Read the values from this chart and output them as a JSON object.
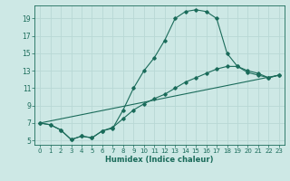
{
  "title": "",
  "xlabel": "Humidex (Indice chaleur)",
  "background_color": "#cde8e5",
  "grid_color": "#b8d8d5",
  "line_color": "#1a6b5a",
  "xlim": [
    -0.5,
    23.5
  ],
  "ylim": [
    4.5,
    20.5
  ],
  "xticks": [
    0,
    1,
    2,
    3,
    4,
    5,
    6,
    7,
    8,
    9,
    10,
    11,
    12,
    13,
    14,
    15,
    16,
    17,
    18,
    19,
    20,
    21,
    22,
    23
  ],
  "yticks": [
    5,
    7,
    9,
    11,
    13,
    15,
    17,
    19
  ],
  "series1_x": [
    0,
    1,
    2,
    3,
    4,
    5,
    6,
    7,
    8,
    9,
    10,
    11,
    12,
    13,
    14,
    15,
    16,
    17,
    18,
    19,
    20,
    21,
    22,
    23
  ],
  "series1_y": [
    7.0,
    6.8,
    6.2,
    5.1,
    5.5,
    5.3,
    6.1,
    6.4,
    8.5,
    11.0,
    13.0,
    14.5,
    16.5,
    19.0,
    19.8,
    20.0,
    19.8,
    19.0,
    15.0,
    13.5,
    13.0,
    12.7,
    12.2,
    12.5
  ],
  "series2_x": [
    0,
    1,
    2,
    3,
    4,
    5,
    6,
    7,
    8,
    9,
    10,
    11,
    12,
    13,
    14,
    15,
    16,
    17,
    18,
    19,
    20,
    21,
    22,
    23
  ],
  "series2_y": [
    7.0,
    6.8,
    6.2,
    5.1,
    5.5,
    5.3,
    6.1,
    6.5,
    7.5,
    8.5,
    9.2,
    9.8,
    10.3,
    11.0,
    11.7,
    12.2,
    12.7,
    13.2,
    13.5,
    13.5,
    12.8,
    12.5,
    12.2,
    12.5
  ],
  "series3_x": [
    0,
    23
  ],
  "series3_y": [
    7.0,
    12.5
  ],
  "xlabel_fontsize": 6,
  "tick_fontsize_x": 5,
  "tick_fontsize_y": 5.5
}
